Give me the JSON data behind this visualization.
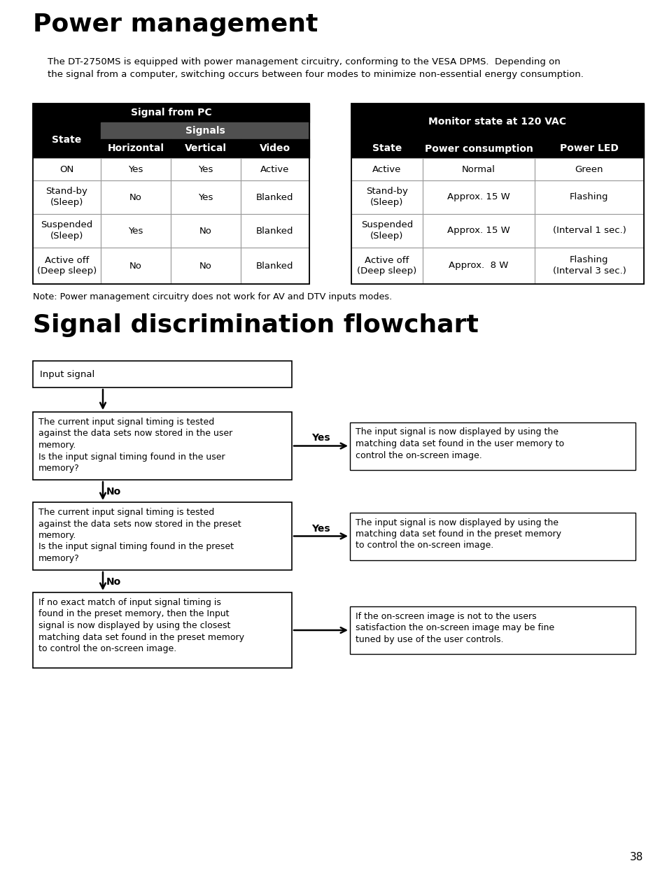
{
  "title": "Power management",
  "subtitle1": "The DT-2750MS is equipped with power management circuitry, conforming to the VESA DPMS.  Depending on",
  "subtitle2": "the signal from a computer, switching occurs between four modes to minimize non-essential energy consumption.",
  "section2_title": "Signal discrimination flowchart",
  "note": "Note: Power management circuitry does not work for AV and DTV inputs modes.",
  "page_number": "38",
  "table1_header1": "Signal from PC",
  "table1_subheader": "Signals",
  "table1_col_state": "State",
  "table1_col_h": "Horizontal",
  "table1_col_v": "Vertical",
  "table1_col_video": "Video",
  "table1_rows": [
    [
      "ON",
      "Yes",
      "Yes",
      "Active"
    ],
    [
      "Stand-by\n(Sleep)",
      "No",
      "Yes",
      "Blanked"
    ],
    [
      "Suspended\n(Sleep)",
      "Yes",
      "No",
      "Blanked"
    ],
    [
      "Active off\n(Deep sleep)",
      "No",
      "No",
      "Blanked"
    ]
  ],
  "table2_header": "Monitor state at 120 VAC",
  "table2_col_state": "State",
  "table2_col_power": "Power consumption",
  "table2_col_led": "Power LED",
  "table2_rows": [
    [
      "Active",
      "Normal",
      "Green"
    ],
    [
      "Stand-by\n(Sleep)",
      "Approx. 15 W",
      "Flashing"
    ],
    [
      "Suspended\n(Sleep)",
      "Approx. 15 W",
      "(Interval 1 sec.)"
    ],
    [
      "Active off\n(Deep sleep)",
      "Approx.  8 W",
      "Flashing\n(Interval 3 sec.)"
    ]
  ],
  "fc_box1": "Input signal",
  "fc_box2": "The current input signal timing is tested\nagainst the data sets now stored in the user\nmemory.\nIs the input signal timing found in the user\nmemory?",
  "fc_box3": "The current input signal timing is tested\nagainst the data sets now stored in the preset\nmemory.\nIs the input signal timing found in the preset\nmemory?",
  "fc_box4": "If no exact match of input signal timing is\nfound in the preset memory, then the Input\nsignal is now displayed by using the closest\nmatching data set found in the preset memory\nto control the on-screen image.",
  "fc_rbox1": "The input signal is now displayed by using the\nmatching data set found in the user memory to\ncontrol the on-screen image.",
  "fc_rbox2": "The input signal is now displayed by using the\nmatching data set found in the preset memory\nto control the on-screen image.",
  "fc_rbox3": "If the on-screen image is not to the users\nsatisfaction the on-screen image may be fine\ntuned by use of the user controls.",
  "bg_color": "#ffffff"
}
